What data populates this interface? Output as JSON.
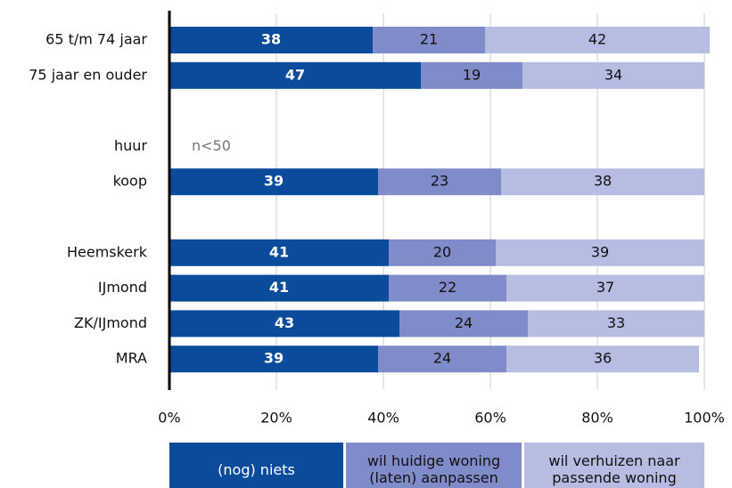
{
  "chart_data": {
    "type": "stacked_bar_horizontal",
    "categories": [
      "65 t/m 74 jaar",
      "75 jaar en ouder",
      null,
      "huur",
      "koop",
      null,
      "Heemskerk",
      "IJmond",
      "ZK/IJmond",
      "MRA"
    ],
    "series": [
      {
        "name": "(nog) niets",
        "color": "#0b4b9c",
        "values": [
          38,
          47,
          null,
          null,
          39,
          null,
          41,
          41,
          43,
          39
        ]
      },
      {
        "name": "wil huidige woning (laten) aanpassen",
        "color": "#7f8cc9",
        "values": [
          21,
          19,
          null,
          null,
          23,
          null,
          20,
          22,
          24,
          24
        ]
      },
      {
        "name": "wil verhuizen naar passende woning",
        "color": "#b7bce2",
        "values": [
          42,
          34,
          null,
          null,
          38,
          null,
          39,
          37,
          33,
          36
        ]
      }
    ],
    "annotations": [
      {
        "category_index": 3,
        "text": "n<50"
      }
    ],
    "xlim": [
      0,
      100
    ],
    "xticks": [
      {
        "value": 0,
        "label": "0%"
      },
      {
        "value": 20,
        "label": "20%"
      },
      {
        "value": 40,
        "label": "40%"
      },
      {
        "value": 60,
        "label": "60%"
      },
      {
        "value": 80,
        "label": "80%"
      },
      {
        "value": 100,
        "label": "100%"
      }
    ],
    "grid": true,
    "legend": "bottom"
  }
}
